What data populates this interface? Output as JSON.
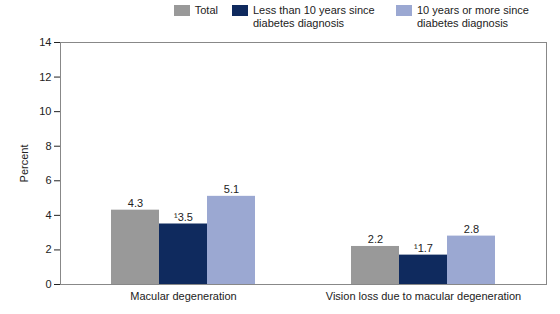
{
  "chart_data": {
    "type": "bar",
    "categories": [
      "Macular degeneration",
      "Vision loss due to macular degeneration"
    ],
    "series": [
      {
        "name": "Total",
        "color": "#999999",
        "values": [
          4.3,
          2.2
        ],
        "value_labels": [
          "4.3",
          "2.2"
        ]
      },
      {
        "name": "Less than 10 years since diabetes diagnosis",
        "color": "#0f2a5e",
        "values": [
          3.5,
          1.7
        ],
        "value_labels": [
          "¹3.5",
          "¹1.7"
        ]
      },
      {
        "name": "10 years or more since diabetes diagnosis",
        "color": "#9ba8d2",
        "values": [
          5.1,
          2.8
        ],
        "value_labels": [
          "5.1",
          "2.8"
        ]
      }
    ],
    "y_label": "Percent",
    "ylim": [
      0,
      14
    ],
    "yticks": [
      0,
      2,
      4,
      6,
      8,
      10,
      12,
      14
    ],
    "grid": false,
    "legend": "top-right",
    "data_labels": true
  }
}
